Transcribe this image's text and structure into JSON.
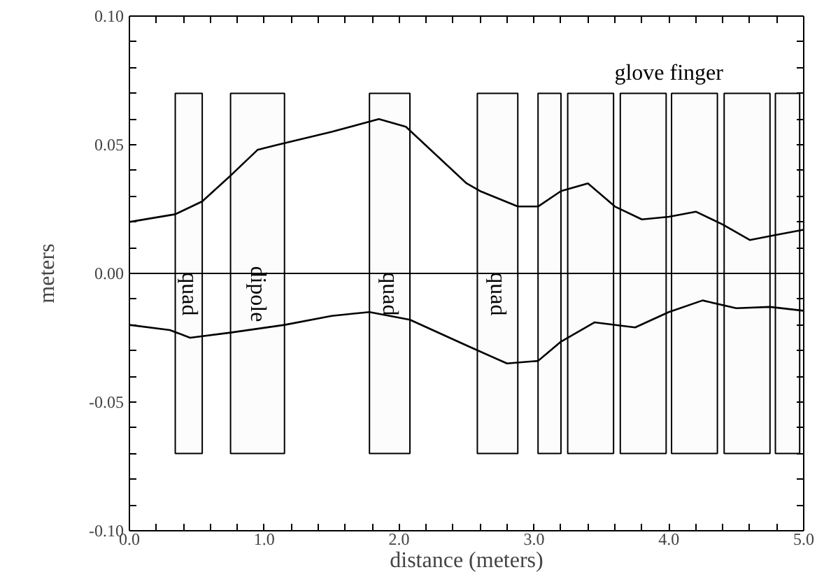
{
  "chart_data": {
    "type": "line",
    "xlabel": "distance (meters)",
    "ylabel": "meters",
    "xlim": [
      0,
      5
    ],
    "ylim": [
      -0.1,
      0.1
    ],
    "xticks": [
      {
        "value": 0,
        "label": "0.0"
      },
      {
        "value": 0.2,
        "label": null
      },
      {
        "value": 0.4,
        "label": null
      },
      {
        "value": 0.6,
        "label": null
      },
      {
        "value": 0.8,
        "label": null
      },
      {
        "value": 1,
        "label": "1.0"
      },
      {
        "value": 1.2,
        "label": null
      },
      {
        "value": 1.4,
        "label": null
      },
      {
        "value": 1.6,
        "label": null
      },
      {
        "value": 1.8,
        "label": null
      },
      {
        "value": 2,
        "label": "2.0"
      },
      {
        "value": 2.2,
        "label": null
      },
      {
        "value": 2.4,
        "label": null
      },
      {
        "value": 2.6,
        "label": null
      },
      {
        "value": 2.8,
        "label": null
      },
      {
        "value": 3,
        "label": "3.0"
      },
      {
        "value": 3.2,
        "label": null
      },
      {
        "value": 3.4,
        "label": null
      },
      {
        "value": 3.6,
        "label": null
      },
      {
        "value": 3.8,
        "label": null
      },
      {
        "value": 4,
        "label": "4.0"
      },
      {
        "value": 4.2,
        "label": null
      },
      {
        "value": 4.4,
        "label": null
      },
      {
        "value": 4.6,
        "label": null
      },
      {
        "value": 4.8,
        "label": null
      },
      {
        "value": 5,
        "label": "5.0"
      }
    ],
    "yticks": [
      {
        "value": -0.1,
        "label": "-0.10"
      },
      {
        "value": -0.09,
        "label": null
      },
      {
        "value": -0.08,
        "label": null
      },
      {
        "value": -0.07,
        "label": null
      },
      {
        "value": -0.06,
        "label": null
      },
      {
        "value": -0.05,
        "label": "-0.05"
      },
      {
        "value": -0.04,
        "label": null
      },
      {
        "value": -0.03,
        "label": null
      },
      {
        "value": -0.02,
        "label": null
      },
      {
        "value": -0.01,
        "label": null
      },
      {
        "value": 0,
        "label": "0.00"
      },
      {
        "value": 0.01,
        "label": null
      },
      {
        "value": 0.02,
        "label": null
      },
      {
        "value": 0.03,
        "label": null
      },
      {
        "value": 0.04,
        "label": null
      },
      {
        "value": 0.05,
        "label": "0.05"
      },
      {
        "value": 0.06,
        "label": null
      },
      {
        "value": 0.07,
        "label": null
      },
      {
        "value": 0.08,
        "label": null
      },
      {
        "value": 0.09,
        "label": null
      },
      {
        "value": 0.1,
        "label": "0.10"
      }
    ],
    "grid": false,
    "marker": "none",
    "line_style": "solid",
    "series": [
      {
        "color": "#000000",
        "x": [
          0,
          0.34,
          0.54,
          0.75,
          0.95,
          1.1,
          1.5,
          1.85,
          2.05,
          2.5,
          2.6,
          2.88,
          3.03,
          3.2,
          3.4,
          3.6,
          3.8,
          4.0,
          4.2,
          4.4,
          4.6,
          4.8,
          5.0
        ],
        "values": [
          0.02,
          0.023,
          0.028,
          0.038,
          0.048,
          0.05,
          0.055,
          0.06,
          0.057,
          0.035,
          0.032,
          0.026,
          0.026,
          0.032,
          0.035,
          0.026,
          0.021,
          0.022,
          0.024,
          0.019,
          0.013,
          0.015,
          0.017
        ]
      },
      {
        "color": "#000000",
        "x": [
          0,
          0.3,
          0.45,
          0.75,
          1.15,
          1.5,
          1.78,
          2.08,
          2.5,
          2.8,
          3.03,
          3.2,
          3.45,
          3.75,
          4.0,
          4.25,
          4.5,
          4.75,
          5.0
        ],
        "values": [
          -0.02,
          -0.022,
          -0.025,
          -0.023,
          -0.02,
          -0.0165,
          -0.015,
          -0.018,
          -0.028,
          -0.035,
          -0.034,
          -0.0265,
          -0.019,
          -0.021,
          -0.015,
          -0.0105,
          -0.0135,
          -0.013,
          -0.0145
        ]
      }
    ],
    "ref_lines": [
      {
        "axis": "y",
        "value": 0,
        "label": null,
        "color": "#000000",
        "line_style": "solid"
      }
    ],
    "bands": [
      {
        "axis": "x",
        "from": 0.34,
        "to": 0.54,
        "label": "quad",
        "color": "#000000"
      },
      {
        "axis": "x",
        "from": 0.75,
        "to": 1.15,
        "label": "dipole",
        "color": "#000000"
      },
      {
        "axis": "x",
        "from": 1.78,
        "to": 2.08,
        "label": "quad",
        "color": "#000000"
      },
      {
        "axis": "x",
        "from": 2.58,
        "to": 2.88,
        "label": "quad",
        "color": "#000000"
      },
      {
        "axis": "x",
        "from": 3.03,
        "to": 3.2,
        "label": null,
        "color": "#000000"
      },
      {
        "axis": "x",
        "from": 3.25,
        "to": 3.59,
        "label": null,
        "color": "#000000"
      },
      {
        "axis": "x",
        "from": 3.64,
        "to": 3.98,
        "label": null,
        "color": "#000000"
      },
      {
        "axis": "x",
        "from": 4.02,
        "to": 4.36,
        "label": null,
        "color": "#000000"
      },
      {
        "axis": "x",
        "from": 4.41,
        "to": 4.75,
        "label": null,
        "color": "#000000"
      },
      {
        "axis": "x",
        "from": 4.79,
        "to": 4.97,
        "label": null,
        "color": "#000000"
      }
    ],
    "annotations": [
      "glove finger"
    ]
  }
}
